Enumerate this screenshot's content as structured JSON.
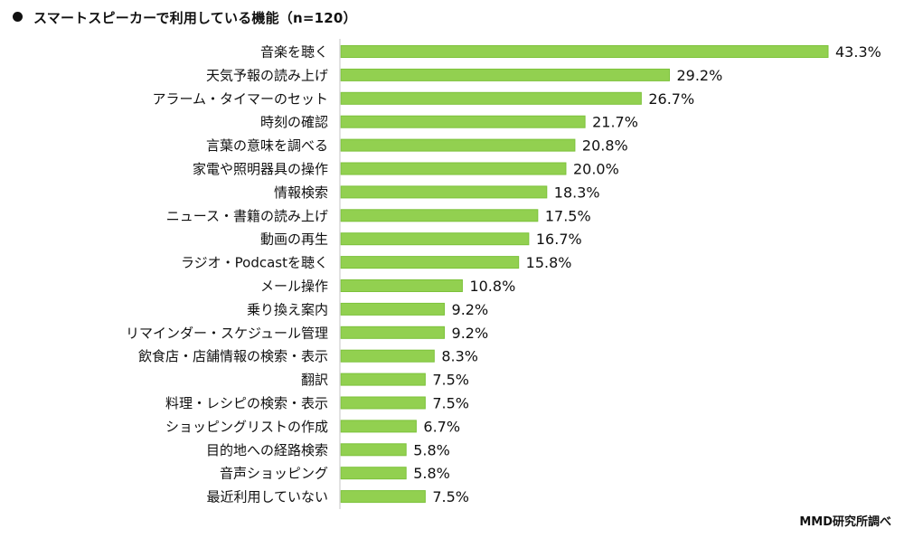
{
  "chart_data": {
    "type": "bar",
    "orientation": "horizontal",
    "title": "スマートスピーカーで利用している機能（n=120）",
    "xlabel": "",
    "ylabel": "",
    "unit": "%",
    "xlim": [
      0,
      45
    ],
    "grid": false,
    "legend": "none",
    "bar_color": "#92d050",
    "categories": [
      "音楽を聴く",
      "天気予報の読み上げ",
      "アラーム・タイマーのセット",
      "時刻の確認",
      "言葉の意味を調べる",
      "家電や照明器具の操作",
      "情報検索",
      "ニュース・書籍の読み上げ",
      "動画の再生",
      "ラジオ・Podcastを聴く",
      "メール操作",
      "乗り換え案内",
      "リマインダー・スケジュール管理",
      "飲食店・店舗情報の検索・表示",
      "翻訳",
      "料理・レシピの検索・表示",
      "ショッピングリストの作成",
      "目的地への経路検索",
      "音声ショッピング",
      "最近利用していない"
    ],
    "values": [
      43.3,
      29.2,
      26.7,
      21.7,
      20.8,
      20.0,
      18.3,
      17.5,
      16.7,
      15.8,
      10.8,
      9.2,
      9.2,
      8.3,
      7.5,
      7.5,
      6.7,
      5.8,
      5.8,
      7.5
    ],
    "value_labels": [
      "43.3%",
      "29.2%",
      "26.7%",
      "21.7%",
      "20.8%",
      "20.0%",
      "18.3%",
      "17.5%",
      "16.7%",
      "15.8%",
      "10.8%",
      "9.2%",
      "9.2%",
      "8.3%",
      "7.5%",
      "7.5%",
      "6.7%",
      "5.8%",
      "5.8%",
      "7.5%"
    ]
  },
  "header": {
    "title": "スマートスピーカーで利用している機能（n=120）"
  },
  "footer": {
    "source": "MMD研究所調べ"
  }
}
